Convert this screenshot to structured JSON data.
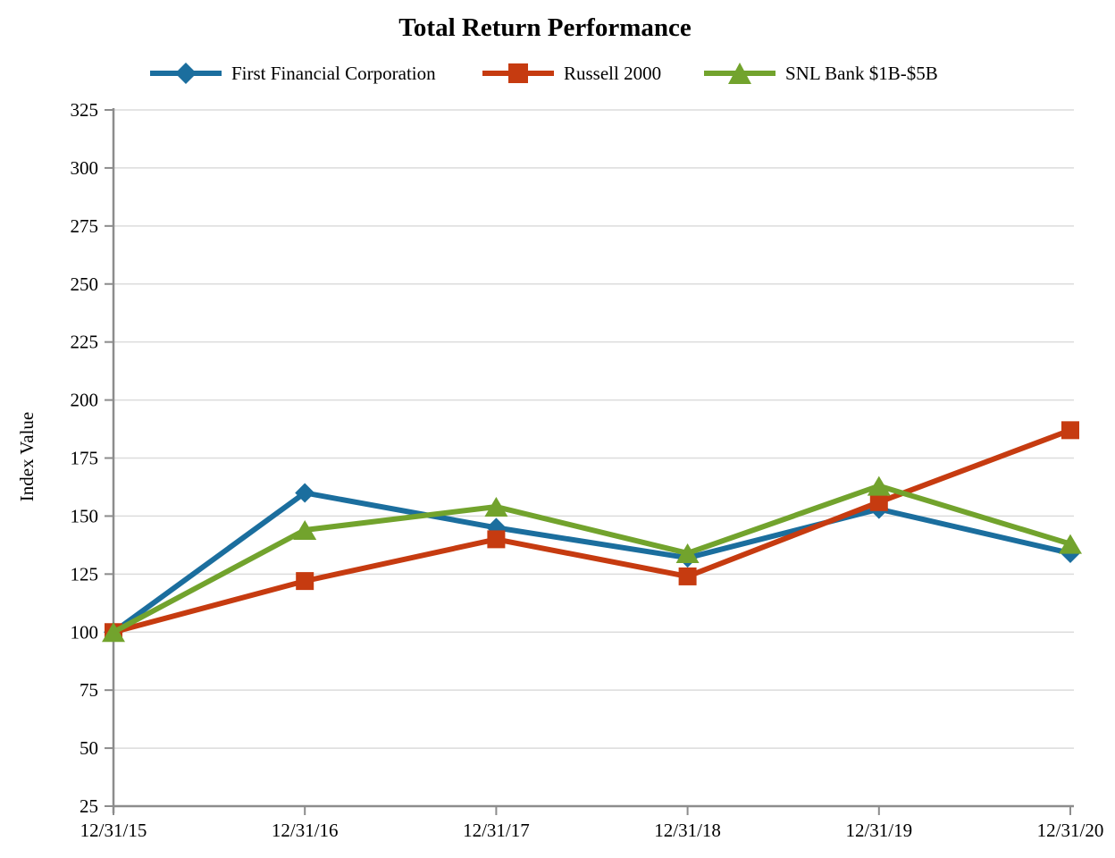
{
  "page": {
    "background": "#ffffff"
  },
  "chart_data": {
    "type": "line",
    "title": "Total Return Performance",
    "xlabel": "",
    "ylabel": "Index Value",
    "ylim": [
      25,
      325
    ],
    "ytick_step": 25,
    "grid": "horizontal-light",
    "legend_position": "top",
    "categories": [
      "12/31/15",
      "12/31/16",
      "12/31/17",
      "12/31/18",
      "12/31/19",
      "12/31/20"
    ],
    "series": [
      {
        "name": "First Financial Corporation",
        "marker": "diamond",
        "color": "#1B6E9E",
        "values": [
          100,
          160,
          145,
          132,
          153,
          134
        ]
      },
      {
        "name": "Russell 2000",
        "marker": "square",
        "color": "#C63B10",
        "values": [
          100,
          122,
          140,
          124,
          156,
          187
        ]
      },
      {
        "name": "SNL Bank $1B-$5B",
        "marker": "triangle",
        "color": "#72A32D",
        "values": [
          100,
          144,
          154,
          134,
          163,
          138
        ]
      }
    ],
    "colors": {
      "axis": "#8C8C8C",
      "grid": "#DCDCDC",
      "text": "#000000"
    }
  }
}
